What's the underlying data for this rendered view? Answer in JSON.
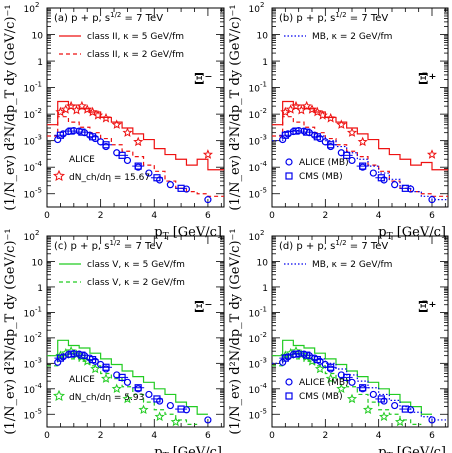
{
  "figure": {
    "y_axis_label": "(1/N_ev) d²N/dp_T dy (GeV/c)⁻¹",
    "x_axis_label": "p_T [GeV/c]"
  },
  "colors": {
    "red": "#ee1111",
    "green": "#22cc22",
    "blue": "#0000ee",
    "black": "#000000"
  },
  "chart_data": [
    {
      "type": "line",
      "panel": "(a)",
      "title": "(a) p + p, s^1/2 = 7 TeV",
      "particle": "Ξ⁻",
      "xlabel": "p_T [GeV/c]",
      "ylabel": "(1/N_ev) d²N/dp_T dy (GeV/c)⁻¹",
      "xlim": [
        0,
        6.6
      ],
      "ylim_log10": [
        -5.5,
        2
      ],
      "x_ticks": [
        "0",
        "2",
        "4",
        "6"
      ],
      "y_ticks": [
        "10^2",
        "10",
        "1",
        "10^-1",
        "10^-2",
        "10^-3",
        "10^-4",
        "10^-5"
      ],
      "grid": false,
      "legend": [
        "class II, κ = 5 GeV/fm",
        "class II, κ = 2 GeV/fm"
      ],
      "annotation": [
        "ALICE",
        "dN_ch/dη = 15.67"
      ],
      "series": [
        {
          "name": "class II, κ = 5 GeV/fm",
          "style": "hist-solid",
          "color": "#ee1111",
          "edges": [
            0,
            0.4,
            0.8,
            1.2,
            1.6,
            2.0,
            2.4,
            2.8,
            3.2,
            3.6,
            4.0,
            4.4,
            4.8,
            5.2,
            5.6,
            6.0,
            6.6
          ],
          "values": [
            0.004,
            0.03,
            0.022,
            0.016,
            0.012,
            0.0075,
            0.005,
            0.003,
            0.0018,
            0.0011,
            0.0005,
            0.0003,
            0.0002,
            0.00012,
            0.0002,
            8e-05
          ]
        },
        {
          "name": "class II, κ = 2 GeV/fm",
          "style": "hist-dashed",
          "color": "#ee1111",
          "edges": [
            0,
            0.4,
            0.8,
            1.2,
            1.6,
            2.0,
            2.4,
            2.8,
            3.2,
            3.6,
            4.0,
            4.4,
            4.8,
            5.2,
            5.6,
            6.0,
            6.6
          ],
          "values": [
            0.0015,
            0.008,
            0.005,
            0.0032,
            0.002,
            0.0012,
            0.0007,
            0.0004,
            0.00025,
            0.00012,
            7e-05,
            3e-05,
            1.6e-05,
            1.2e-05,
            1e-05,
            8e-06
          ]
        },
        {
          "name": "stars",
          "style": "stars",
          "color": "#ee1111",
          "x": [
            0.5,
            0.7,
            0.9,
            1.1,
            1.3,
            1.5,
            1.7,
            1.9,
            2.2,
            2.6,
            3.0,
            3.4,
            6.0
          ],
          "y": [
            0.012,
            0.015,
            0.02,
            0.014,
            0.02,
            0.015,
            0.012,
            0.009,
            0.007,
            0.004,
            0.002,
            0.0009,
            0.0003
          ]
        },
        {
          "name": "ALICE (MB)",
          "style": "circles",
          "color": "#0000ee",
          "x": [
            0.4,
            0.6,
            0.8,
            1.0,
            1.2,
            1.4,
            1.6,
            1.8,
            2.0,
            2.2,
            2.6,
            3.0,
            3.4,
            3.8,
            4.2,
            4.6,
            5.2,
            6.0
          ],
          "y": [
            0.0011,
            0.0018,
            0.0022,
            0.0024,
            0.0023,
            0.002,
            0.0016,
            0.0012,
            0.0009,
            0.0006,
            0.00035,
            0.00018,
            0.0001,
            6e-05,
            3.3e-05,
            2.2e-05,
            1.5e-05,
            6e-06
          ]
        },
        {
          "name": "CMS (MB)",
          "style": "squares",
          "color": "#0000ee",
          "x": [
            0.5,
            0.9,
            1.3,
            1.7,
            2.2,
            2.8,
            3.4,
            4.1,
            5.0
          ],
          "y": [
            0.0016,
            0.0023,
            0.0021,
            0.0014,
            0.0007,
            0.00028,
            0.00011,
            4e-05,
            1.6e-05
          ]
        }
      ]
    },
    {
      "type": "line",
      "panel": "(b)",
      "title": "(b) p + p, s^1/2 = 7 TeV",
      "particle": "Ξ̄⁺",
      "xlabel": "p_T [GeV/c]",
      "ylabel": "(1/N_ev) d²N/dp_T dy (GeV/c)⁻¹",
      "xlim": [
        0,
        6.6
      ],
      "ylim_log10": [
        -5.5,
        2
      ],
      "x_ticks": [
        "0",
        "2",
        "4",
        "6"
      ],
      "y_ticks": [
        "10^2",
        "10",
        "1",
        "10^-1",
        "10^-2",
        "10^-3",
        "10^-4",
        "10^-5"
      ],
      "grid": false,
      "legend": [
        "MB, κ = 2 GeV/fm",
        "ALICE (MB)",
        "CMS (MB)"
      ],
      "series": [
        {
          "name": "class II, κ = 5 GeV/fm",
          "style": "hist-solid",
          "color": "#ee1111",
          "edges": [
            0,
            0.4,
            0.8,
            1.2,
            1.6,
            2.0,
            2.4,
            2.8,
            3.2,
            3.6,
            4.0,
            4.4,
            4.8,
            5.2,
            5.6,
            6.0,
            6.6
          ],
          "values": [
            0.004,
            0.03,
            0.022,
            0.016,
            0.012,
            0.0075,
            0.005,
            0.003,
            0.0018,
            0.0011,
            0.0005,
            0.0003,
            0.0002,
            0.00012,
            0.00015,
            8e-05
          ]
        },
        {
          "name": "class II, κ = 2 GeV/fm",
          "style": "hist-dashed",
          "color": "#ee1111",
          "edges": [
            0,
            0.4,
            0.8,
            1.2,
            1.6,
            2.0,
            2.4,
            2.8,
            3.2,
            3.6,
            4.0,
            4.4,
            4.8,
            5.2,
            5.6,
            6.0,
            6.6
          ],
          "values": [
            0.0015,
            0.008,
            0.005,
            0.0032,
            0.002,
            0.0012,
            0.0007,
            0.0004,
            0.00025,
            0.00012,
            7e-05,
            3e-05,
            1.6e-05,
            1.2e-05,
            1e-05,
            8e-06
          ]
        },
        {
          "name": "stars",
          "style": "stars",
          "color": "#ee1111",
          "x": [
            0.5,
            0.7,
            0.9,
            1.1,
            1.3,
            1.5,
            1.7,
            1.9,
            2.2,
            2.6,
            3.0,
            3.4,
            6.0
          ],
          "y": [
            0.012,
            0.015,
            0.02,
            0.014,
            0.02,
            0.015,
            0.012,
            0.009,
            0.007,
            0.004,
            0.002,
            0.0009,
            0.0003
          ]
        },
        {
          "name": "MB, κ = 2 GeV/fm",
          "style": "hist-dotted",
          "color": "#0000ee",
          "edges": [
            0,
            0.4,
            0.8,
            1.2,
            1.6,
            2.0,
            2.4,
            2.8,
            3.2,
            3.6,
            4.0,
            4.4,
            4.8,
            5.2,
            5.6,
            6.0,
            6.6
          ],
          "values": [
            0.001,
            0.0022,
            0.0024,
            0.002,
            0.0015,
            0.001,
            0.0006,
            0.00035,
            0.0002,
            0.00011,
            6e-05,
            3.5e-05,
            2e-05,
            1.2e-05,
            8e-06,
            6e-06
          ]
        },
        {
          "name": "ALICE (MB)",
          "style": "circles",
          "color": "#0000ee",
          "x": [
            0.4,
            0.6,
            0.8,
            1.0,
            1.2,
            1.4,
            1.6,
            1.8,
            2.0,
            2.2,
            2.6,
            3.0,
            3.4,
            3.8,
            4.2,
            4.6,
            5.2,
            6.0
          ],
          "y": [
            0.0011,
            0.0018,
            0.0022,
            0.0024,
            0.0023,
            0.002,
            0.0016,
            0.0012,
            0.0009,
            0.0006,
            0.00035,
            0.00018,
            0.0001,
            6e-05,
            3.3e-05,
            2.2e-05,
            1.5e-05,
            6e-06
          ]
        },
        {
          "name": "CMS (MB)",
          "style": "squares",
          "color": "#0000ee",
          "x": [
            0.5,
            0.9,
            1.3,
            1.7,
            2.2,
            2.8,
            3.4,
            4.1,
            5.0
          ],
          "y": [
            0.0016,
            0.0023,
            0.0021,
            0.0014,
            0.0007,
            0.00028,
            0.00011,
            4e-05,
            1.6e-05
          ]
        }
      ]
    },
    {
      "type": "line",
      "panel": "(c)",
      "title": "(c) p + p, s^1/2 = 7 TeV",
      "particle": "Ξ⁻",
      "xlabel": "p_T [GeV/c]",
      "ylabel": "(1/N_ev) d²N/dp_T dy (GeV/c)⁻¹",
      "xlim": [
        0,
        6.6
      ],
      "ylim_log10": [
        -5.5,
        2
      ],
      "x_ticks": [
        "0",
        "2",
        "4",
        "6"
      ],
      "y_ticks": [
        "10^2",
        "10",
        "1",
        "10^-1",
        "10^-2",
        "10^-3",
        "10^-4",
        "10^-5"
      ],
      "grid": false,
      "legend": [
        "class V, κ = 5 GeV/fm",
        "class V, κ = 2 GeV/fm"
      ],
      "annotation": [
        "ALICE",
        "dN_ch/dη = 5.93"
      ],
      "series": [
        {
          "name": "class V, κ = 5 GeV/fm",
          "style": "hist-solid",
          "color": "#22cc22",
          "edges": [
            0,
            0.4,
            0.8,
            1.2,
            1.6,
            2.0,
            2.4,
            2.8,
            3.2,
            3.6,
            4.0,
            4.4,
            4.8,
            5.2,
            5.6,
            6.0
          ],
          "values": [
            0.002,
            0.008,
            0.005,
            0.004,
            0.0025,
            0.0015,
            0.0009,
            0.0005,
            0.0003,
            0.00018,
            0.0001,
            6e-05,
            3e-05,
            2e-05,
            1e-05
          ]
        },
        {
          "name": "class V, κ = 2 GeV/fm",
          "style": "hist-dashed",
          "color": "#22cc22",
          "edges": [
            0,
            0.4,
            0.8,
            1.2,
            1.6,
            2.0,
            2.4,
            2.8,
            3.2,
            3.6,
            4.0,
            4.4,
            4.8,
            5.2,
            5.6
          ],
          "values": [
            0.0008,
            0.0018,
            0.0015,
            0.0012,
            0.0008,
            0.0004,
            0.00025,
            0.00012,
            6e-05,
            3e-05,
            1.5e-05,
            1e-05,
            6e-06,
            4e-06
          ]
        },
        {
          "name": "stars",
          "style": "stars",
          "color": "#22cc22",
          "x": [
            0.5,
            0.7,
            0.9,
            1.1,
            1.3,
            1.5,
            1.8,
            2.2,
            2.6,
            3.0,
            3.6,
            4.2,
            4.8
          ],
          "y": [
            0.002,
            0.0025,
            0.003,
            0.0022,
            0.0018,
            0.0012,
            0.0006,
            0.00025,
            0.0001,
            4e-05,
            1.5e-05,
            8e-06,
            5e-06
          ]
        },
        {
          "name": "ALICE (MB)",
          "style": "circles",
          "color": "#0000ee",
          "x": [
            0.4,
            0.6,
            0.8,
            1.0,
            1.2,
            1.4,
            1.6,
            1.8,
            2.0,
            2.2,
            2.6,
            3.0,
            3.4,
            3.8,
            4.2,
            4.6,
            5.2,
            6.0
          ],
          "y": [
            0.0011,
            0.0018,
            0.0022,
            0.0024,
            0.0023,
            0.002,
            0.0016,
            0.0012,
            0.0009,
            0.0006,
            0.00035,
            0.00018,
            0.0001,
            6e-05,
            3.3e-05,
            2.2e-05,
            1.5e-05,
            6e-06
          ]
        },
        {
          "name": "CMS (MB)",
          "style": "squares",
          "color": "#0000ee",
          "x": [
            0.5,
            0.9,
            1.3,
            1.7,
            2.2,
            2.8,
            3.4,
            4.1,
            5.0
          ],
          "y": [
            0.0016,
            0.0023,
            0.0021,
            0.0014,
            0.0007,
            0.00028,
            0.00011,
            4e-05,
            1.6e-05
          ]
        }
      ]
    },
    {
      "type": "line",
      "panel": "(d)",
      "title": "(d) p + p, s^1/2 = 7 TeV",
      "particle": "Ξ̄⁺",
      "xlabel": "p_T [GeV/c]",
      "ylabel": "(1/N_ev) d²N/dp_T dy (GeV/c)⁻¹",
      "xlim": [
        0,
        6.6
      ],
      "ylim_log10": [
        -5.5,
        2
      ],
      "x_ticks": [
        "0",
        "2",
        "4",
        "6"
      ],
      "y_ticks": [
        "10^2",
        "10",
        "1",
        "10^-1",
        "10^-2",
        "10^-3",
        "10^-4",
        "10^-5"
      ],
      "grid": false,
      "legend": [
        "MB, κ = 2 GeV/fm",
        "ALICE (MB)",
        "CMS (MB)"
      ],
      "series": [
        {
          "name": "class V, κ = 5 GeV/fm",
          "style": "hist-solid",
          "color": "#22cc22",
          "edges": [
            0,
            0.4,
            0.8,
            1.2,
            1.6,
            2.0,
            2.4,
            2.8,
            3.2,
            3.6,
            4.0,
            4.4,
            4.8,
            5.2,
            5.6,
            6.0
          ],
          "values": [
            0.002,
            0.008,
            0.005,
            0.004,
            0.0025,
            0.0015,
            0.0009,
            0.0005,
            0.0003,
            0.00018,
            0.0001,
            6e-05,
            3e-05,
            2e-05,
            1e-05
          ]
        },
        {
          "name": "class V, κ = 2 GeV/fm",
          "style": "hist-dashed",
          "color": "#22cc22",
          "edges": [
            0,
            0.4,
            0.8,
            1.2,
            1.6,
            2.0,
            2.4,
            2.8,
            3.2,
            3.6,
            4.0,
            4.4,
            4.8,
            5.2,
            5.6
          ],
          "values": [
            0.0008,
            0.0018,
            0.0015,
            0.0012,
            0.0008,
            0.0004,
            0.00025,
            0.00012,
            6e-05,
            3e-05,
            1.5e-05,
            1e-05,
            6e-06,
            4e-06
          ]
        },
        {
          "name": "stars",
          "style": "stars",
          "color": "#22cc22",
          "x": [
            0.5,
            0.7,
            0.9,
            1.1,
            1.3,
            1.5,
            1.8,
            2.2,
            2.6,
            3.0,
            3.6,
            4.2,
            4.8
          ],
          "y": [
            0.002,
            0.0025,
            0.003,
            0.0022,
            0.0018,
            0.0012,
            0.0006,
            0.00025,
            0.0001,
            4e-05,
            1.5e-05,
            8e-06,
            5e-06
          ]
        },
        {
          "name": "MB, κ = 2 GeV/fm",
          "style": "hist-dotted",
          "color": "#0000ee",
          "edges": [
            0,
            0.4,
            0.8,
            1.2,
            1.6,
            2.0,
            2.4,
            2.8,
            3.2,
            3.6,
            4.0,
            4.4,
            4.8,
            5.2,
            5.6,
            6.0,
            6.6
          ],
          "values": [
            0.001,
            0.0022,
            0.0024,
            0.002,
            0.0015,
            0.001,
            0.0006,
            0.00035,
            0.0002,
            0.00011,
            6e-05,
            3.5e-05,
            2e-05,
            1.2e-05,
            8e-06,
            6e-06
          ]
        },
        {
          "name": "ALICE (MB)",
          "style": "circles",
          "color": "#0000ee",
          "x": [
            0.4,
            0.6,
            0.8,
            1.0,
            1.2,
            1.4,
            1.6,
            1.8,
            2.0,
            2.2,
            2.6,
            3.0,
            3.4,
            3.8,
            4.2,
            4.6,
            5.2,
            6.0
          ],
          "y": [
            0.0011,
            0.0018,
            0.0022,
            0.0024,
            0.0023,
            0.002,
            0.0016,
            0.0012,
            0.0009,
            0.0006,
            0.00035,
            0.00018,
            0.0001,
            6e-05,
            3.3e-05,
            2.2e-05,
            1.5e-05,
            6e-06
          ]
        },
        {
          "name": "CMS (MB)",
          "style": "squares",
          "color": "#0000ee",
          "x": [
            0.5,
            0.9,
            1.3,
            1.7,
            2.2,
            2.8,
            3.4,
            4.1,
            5.0
          ],
          "y": [
            0.0016,
            0.0023,
            0.0021,
            0.0014,
            0.0007,
            0.00028,
            0.00011,
            4e-05,
            1.6e-05
          ]
        }
      ]
    }
  ]
}
